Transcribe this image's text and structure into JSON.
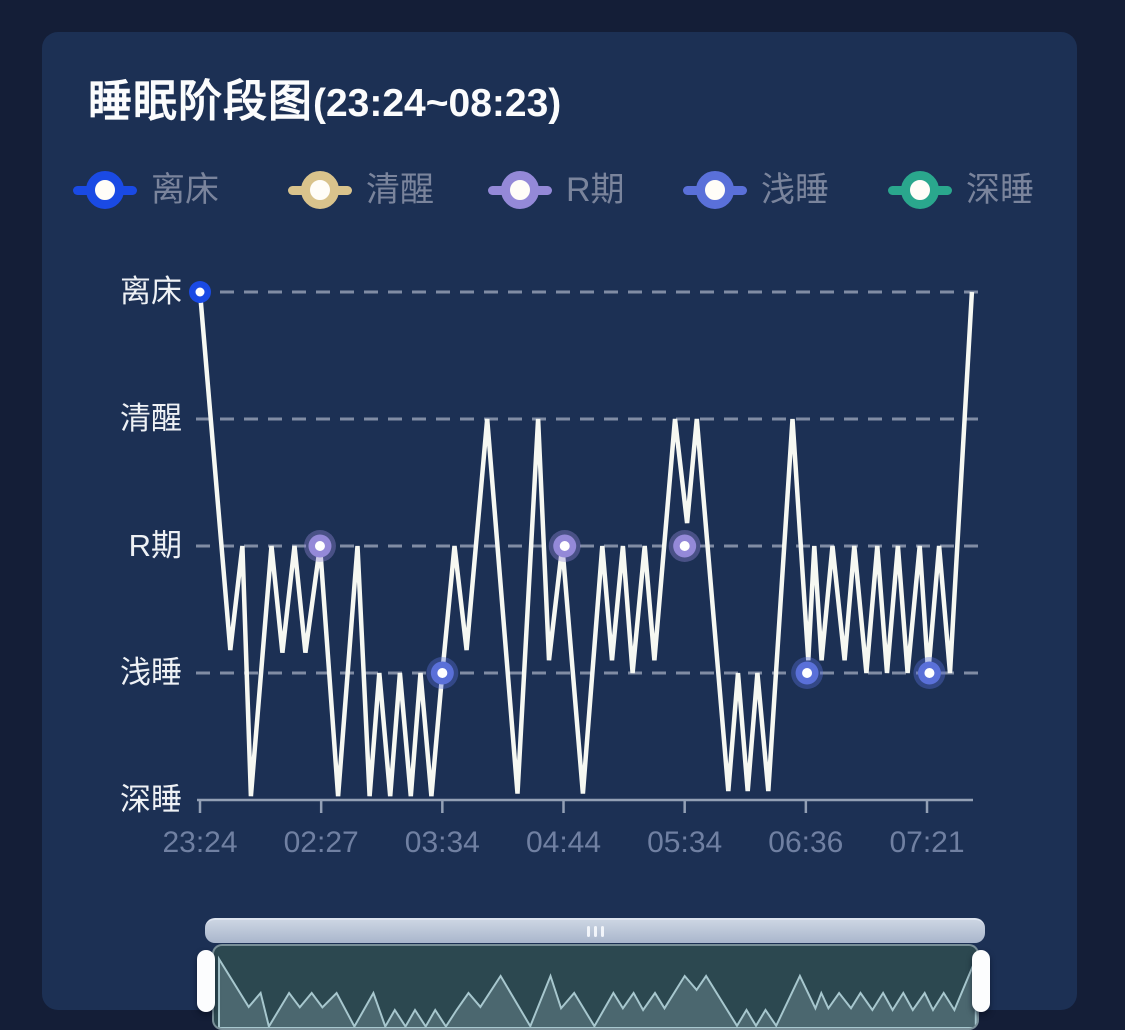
{
  "panel": {
    "title_main": "睡眠阶段图",
    "title_range": "(23:24~08:23)"
  },
  "legend": {
    "order_top_down": [
      4,
      3,
      2,
      1,
      0
    ]
  },
  "colors": {
    "page_bg": "#141e37",
    "panel_bg": "#1c3054",
    "line": "#f6f8f2",
    "grid": "#99a3b9",
    "axis": "#93a0b5",
    "y_label": "#eef1f5",
    "x_label": "#7080a2",
    "legend_text": "#7a849c",
    "slider_track": "#b4c0d3",
    "preview_bg": "#2c4850",
    "preview_line": "#a7c7ce",
    "preview_fill": "#7f9ba4",
    "handle": "#fcfdfe"
  },
  "chart_data": {
    "type": "line",
    "title": "睡眠阶段图(23:24~08:23)",
    "stages_bottom_up": [
      {
        "label": "深睡",
        "color": "#2aa78d"
      },
      {
        "label": "浅睡",
        "color": "#5a70d9"
      },
      {
        "label": "R期",
        "color": "#9489d8"
      },
      {
        "label": "清醒",
        "color": "#d9c38c"
      },
      {
        "label": "离床",
        "color": "#1a4ae4"
      }
    ],
    "x_tick_labels": [
      "23:24",
      "02:27",
      "03:34",
      "04:44",
      "05:34",
      "06:36",
      "07:21"
    ],
    "ylim": [
      0,
      4
    ],
    "grid_dashed": true,
    "legend_position": "top",
    "series": [
      {
        "name": "睡眠阶段",
        "points": [
          [
            0.0,
            4.0
          ],
          [
            0.25,
            1.18
          ],
          [
            0.35,
            2.0
          ],
          [
            0.42,
            0.03
          ],
          [
            0.59,
            2.0
          ],
          [
            0.68,
            1.16
          ],
          [
            0.78,
            2.0
          ],
          [
            0.87,
            1.16
          ],
          [
            0.99,
            2.0
          ],
          [
            1.14,
            0.03
          ],
          [
            1.3,
            2.0
          ],
          [
            1.4,
            0.03
          ],
          [
            1.48,
            1.0
          ],
          [
            1.57,
            0.03
          ],
          [
            1.65,
            1.0
          ],
          [
            1.74,
            0.03
          ],
          [
            1.82,
            1.0
          ],
          [
            1.91,
            0.03
          ],
          [
            2.0,
            1.0
          ],
          [
            2.1,
            2.0
          ],
          [
            2.2,
            1.18
          ],
          [
            2.37,
            3.0
          ],
          [
            2.62,
            0.05
          ],
          [
            2.79,
            3.0
          ],
          [
            2.88,
            1.1
          ],
          [
            2.99,
            2.0
          ],
          [
            3.16,
            0.05
          ],
          [
            3.32,
            2.0
          ],
          [
            3.4,
            1.1
          ],
          [
            3.49,
            2.0
          ],
          [
            3.57,
            1.0
          ],
          [
            3.67,
            2.0
          ],
          [
            3.75,
            1.1
          ],
          [
            3.92,
            3.0
          ],
          [
            4.02,
            2.18
          ],
          [
            4.1,
            3.0
          ],
          [
            4.36,
            0.07
          ],
          [
            4.44,
            1.0
          ],
          [
            4.52,
            0.07
          ],
          [
            4.6,
            1.0
          ],
          [
            4.69,
            0.07
          ],
          [
            4.89,
            3.0
          ],
          [
            5.02,
            1.1
          ],
          [
            5.07,
            2.0
          ],
          [
            5.13,
            1.1
          ],
          [
            5.22,
            2.0
          ],
          [
            5.32,
            1.1
          ],
          [
            5.4,
            2.0
          ],
          [
            5.5,
            1.0
          ],
          [
            5.59,
            2.0
          ],
          [
            5.67,
            1.0
          ],
          [
            5.76,
            2.0
          ],
          [
            5.84,
            1.0
          ],
          [
            5.94,
            2.0
          ],
          [
            6.01,
            1.0
          ],
          [
            6.1,
            2.0
          ],
          [
            6.19,
            1.0
          ],
          [
            6.37,
            4.0
          ]
        ]
      }
    ],
    "tick_markers": [
      {
        "x": 0.0,
        "v": 4
      },
      {
        "x": 0.99,
        "v": 2
      },
      {
        "x": 2.0,
        "v": 1
      },
      {
        "x": 3.01,
        "v": 2
      },
      {
        "x": 4.0,
        "v": 2
      },
      {
        "x": 5.01,
        "v": 1
      },
      {
        "x": 6.02,
        "v": 1
      }
    ]
  }
}
